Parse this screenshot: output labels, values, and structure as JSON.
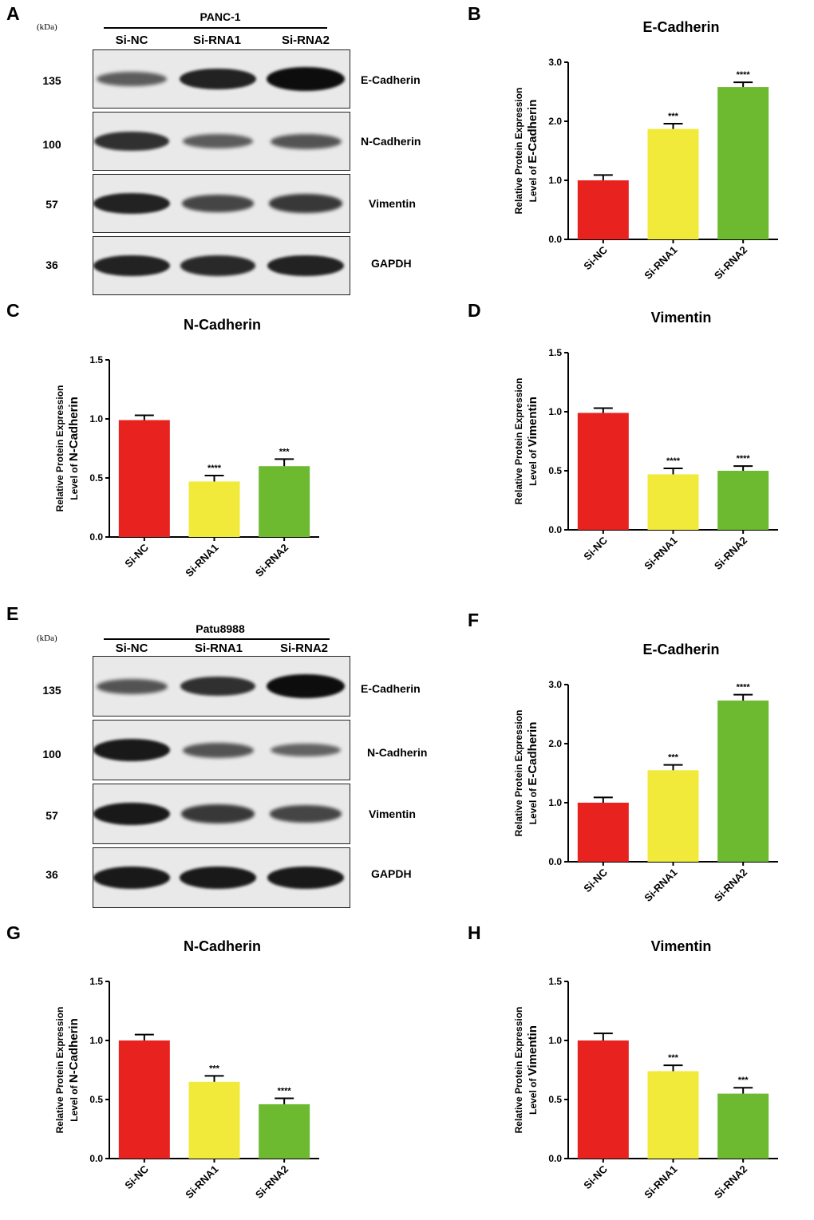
{
  "colors": {
    "si_nc": "#e8231f",
    "si_rna1": "#f1ea3b",
    "si_rna2": "#6dba31",
    "axis": "#000000",
    "error": "#000000"
  },
  "panels": [
    "A",
    "B",
    "C",
    "D",
    "E",
    "F",
    "G",
    "H"
  ],
  "blots": [
    {
      "panel": "A",
      "unit": "(kDa)",
      "cell_line": "PANC-1",
      "lanes": [
        "Si-NC",
        "Si-RNA1",
        "Si-RNA2"
      ],
      "rows": [
        {
          "mw": "135",
          "protein": "E-Cadherin",
          "intensity": [
            0.45,
            0.85,
            1.0
          ]
        },
        {
          "mw": "100",
          "protein": "N-Cadherin",
          "intensity": [
            0.75,
            0.45,
            0.5
          ]
        },
        {
          "mw": "57",
          "protein": "Vimentin",
          "intensity": [
            0.85,
            0.6,
            0.7
          ]
        },
        {
          "mw": "36",
          "protein": "GAPDH",
          "intensity": [
            0.85,
            0.8,
            0.85
          ]
        }
      ]
    },
    {
      "panel": "E",
      "unit": "(kDa)",
      "cell_line": "Patu8988",
      "lanes": [
        "Si-NC",
        "Si-RNA1",
        "Si-RNA2"
      ],
      "rows": [
        {
          "mw": "135",
          "protein": "E-Cadherin",
          "intensity": [
            0.5,
            0.75,
            1.0
          ]
        },
        {
          "mw": "100",
          "protein": "N-Cadherin",
          "intensity": [
            0.9,
            0.5,
            0.4
          ]
        },
        {
          "mw": "57",
          "protein": "Vimentin",
          "intensity": [
            0.9,
            0.7,
            0.6
          ]
        },
        {
          "mw": "36",
          "protein": "GAPDH",
          "intensity": [
            0.9,
            0.9,
            0.9
          ]
        }
      ]
    }
  ],
  "chart_data": [
    {
      "panel": "B",
      "type": "bar",
      "title": "E-Cadherin",
      "ylabel_line1": "Relative Protein Expression",
      "ylabel_line2": "Level of",
      "ylabel_protein": "E-Cadherin",
      "categories": [
        "Si-NC",
        "Si-RNA1",
        "Si-RNA2"
      ],
      "values": [
        1.0,
        1.87,
        2.58
      ],
      "errors": [
        0.09,
        0.09,
        0.08
      ],
      "significance": [
        "",
        "***",
        "****"
      ],
      "ylim": [
        0,
        3.0
      ],
      "yticks": [
        "0.0",
        "1.0",
        "2.0",
        "3.0"
      ]
    },
    {
      "panel": "C",
      "type": "bar",
      "title": "N-Cadherin",
      "ylabel_line1": "Relative Protein Expression",
      "ylabel_line2": "Level of",
      "ylabel_protein": "N-Cadherin",
      "categories": [
        "Si-NC",
        "Si-RNA1",
        "Si-RNA2"
      ],
      "values": [
        0.99,
        0.47,
        0.6
      ],
      "errors": [
        0.04,
        0.05,
        0.06
      ],
      "significance": [
        "",
        "****",
        "***"
      ],
      "ylim": [
        0,
        1.5
      ],
      "yticks": [
        "0.0",
        "0.5",
        "1.0",
        "1.5"
      ]
    },
    {
      "panel": "D",
      "type": "bar",
      "title": "Vimentin",
      "ylabel_line1": "Relative Protein Expression",
      "ylabel_line2": "Level of",
      "ylabel_protein": "Vimentin",
      "categories": [
        "Si-NC",
        "Si-RNA1",
        "Si-RNA2"
      ],
      "values": [
        0.99,
        0.47,
        0.5
      ],
      "errors": [
        0.04,
        0.05,
        0.04
      ],
      "significance": [
        "",
        "****",
        "****"
      ],
      "ylim": [
        0,
        1.5
      ],
      "yticks": [
        "0.0",
        "0.5",
        "1.0",
        "1.5"
      ]
    },
    {
      "panel": "F",
      "type": "bar",
      "title": "E-Cadherin",
      "ylabel_line1": "Relative Protein Expression",
      "ylabel_line2": "Level of",
      "ylabel_protein": "E-Cadherin",
      "categories": [
        "Si-NC",
        "Si-RNA1",
        "Si-RNA2"
      ],
      "values": [
        1.0,
        1.55,
        2.73
      ],
      "errors": [
        0.09,
        0.09,
        0.1
      ],
      "significance": [
        "",
        "***",
        "****"
      ],
      "ylim": [
        0,
        3.0
      ],
      "yticks": [
        "0.0",
        "1.0",
        "2.0",
        "3.0"
      ]
    },
    {
      "panel": "G",
      "type": "bar",
      "title": "N-Cadherin",
      "ylabel_line1": "Relative Protein Expression",
      "ylabel_line2": "Level of",
      "ylabel_protein": "N-Cadherin",
      "categories": [
        "Si-NC",
        "Si-RNA1",
        "Si-RNA2"
      ],
      "values": [
        1.0,
        0.65,
        0.46
      ],
      "errors": [
        0.05,
        0.05,
        0.05
      ],
      "significance": [
        "",
        "***",
        "****"
      ],
      "ylim": [
        0,
        1.5
      ],
      "yticks": [
        "0.0",
        "0.5",
        "1.0",
        "1.5"
      ]
    },
    {
      "panel": "H",
      "type": "bar",
      "title": "Vimentin",
      "ylabel_line1": "Relative Protein Expression",
      "ylabel_line2": "Level of",
      "ylabel_protein": "Vimentin",
      "categories": [
        "Si-NC",
        "Si-RNA1",
        "Si-RNA2"
      ],
      "values": [
        1.0,
        0.74,
        0.55
      ],
      "errors": [
        0.06,
        0.05,
        0.05
      ],
      "significance": [
        "",
        "***",
        "***"
      ],
      "ylim": [
        0,
        1.5
      ],
      "yticks": [
        "0.0",
        "0.5",
        "1.0",
        "1.5"
      ]
    }
  ]
}
